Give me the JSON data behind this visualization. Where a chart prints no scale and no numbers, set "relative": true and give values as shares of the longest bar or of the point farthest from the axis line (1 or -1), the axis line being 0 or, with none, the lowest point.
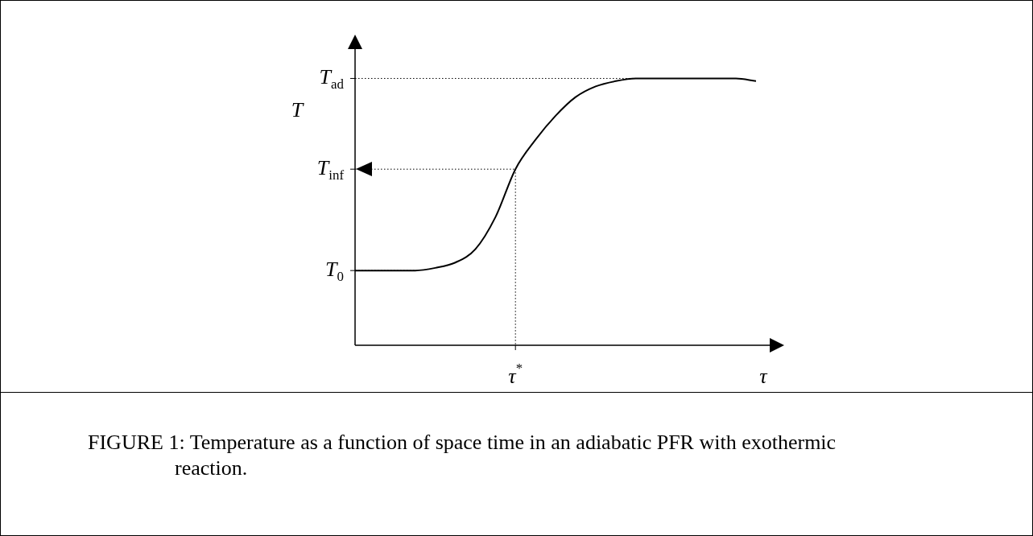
{
  "chart_data": {
    "type": "line",
    "relative": true,
    "title": "FIGURE 1:  Temperature as a function of space time in an adiabatic PFR with exothermic reaction.",
    "xlabel": "τ",
    "ylabel": "T",
    "categories": [
      null,
      null,
      null,
      null,
      null,
      null,
      null,
      null,
      null,
      null,
      null,
      null,
      null,
      null,
      null,
      null,
      null,
      null,
      null,
      null,
      null
    ],
    "series": [
      {
        "color": "#000000",
        "values": [
          0.28,
          0.28,
          0.28,
          0.28,
          0.29,
          0.31,
          0.36,
          0.48,
          0.66,
          0.77,
          0.86,
          0.93,
          0.97,
          0.99,
          1,
          1,
          1,
          1,
          1,
          1,
          0.99
        ]
      }
    ],
    "annotations": [
      "τ$^{*}$"
    ],
    "ref_lines": [
      {
        "axis": "y",
        "value": 1,
        "label": "T$_{ad}$",
        "line_style": "dotted"
      },
      {
        "axis": "y",
        "value": 0.66,
        "label": "T$_{inf}$",
        "line_style": "dotted"
      },
      {
        "axis": "y",
        "value": 0.28,
        "label": "T$_{0}$",
        "line_style": "dotted"
      }
    ],
    "grid": false,
    "legend": false,
    "marker": "none",
    "line_style": "solid"
  }
}
